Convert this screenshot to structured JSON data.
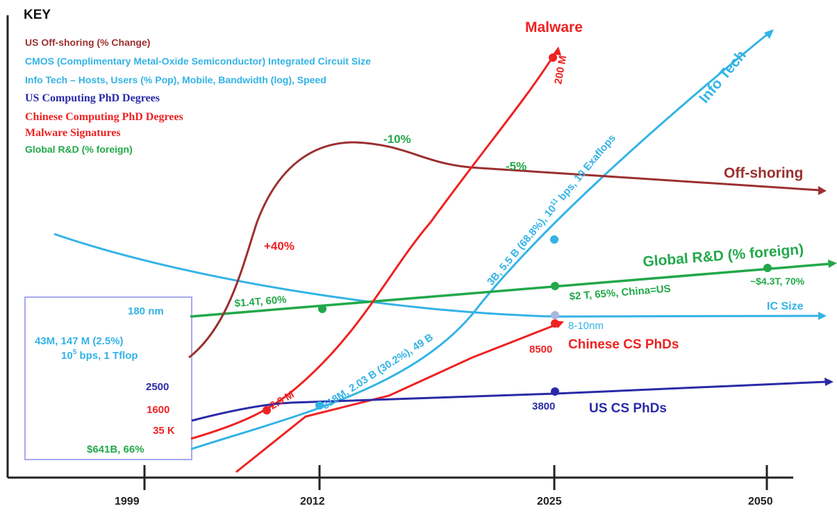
{
  "chart_data": {
    "type": "line",
    "x_ticks": [
      "1999",
      "2012",
      "2025",
      "2050"
    ],
    "key": {
      "title": "KEY",
      "entries": [
        {
          "text": "US Off-shoring (% Change)",
          "color": "#9b3030"
        },
        {
          "text": "CMOS (Complimentary Metal-Oxide Semiconductor) Integrated Circuit Size",
          "color": "#33b3e6"
        },
        {
          "text": "Info Tech – Hosts, Users (% Pop), Mobile, Bandwidth (log), Speed",
          "color": "#33b3e6"
        },
        {
          "text": "US Computing PhD Degrees",
          "color": "#2a2aa8"
        },
        {
          "text": "Chinese Computing PhD Degrees",
          "color": "#ee2222"
        },
        {
          "text": "Malware Signatures",
          "color": "#ee2222"
        },
        {
          "text": "Global R&D (% foreign)",
          "color": "#22a84a"
        }
      ]
    },
    "start_values": {
      "ic_size": "180 nm",
      "info_tech": "43M, 147 M (2.5%)",
      "info_tech_speed_base": "10",
      "info_tech_speed_exp": "5",
      "info_tech_speed_rest": " bps, 1 Tflop",
      "us_phd": "2500",
      "chinese_phd": "1600",
      "malware": "35 K",
      "global_rd": "$641B, 66%"
    },
    "series": [
      {
        "name": "Malware",
        "color": "#ee2222",
        "annotations": [
          "2.9 M",
          "200 M"
        ]
      },
      {
        "name": "Info Tech",
        "color": "#33b3e6",
        "annotations": [
          "818M, 2.03 B (30.2%), 49 B"
        ],
        "annotation_2025": {
          "pre": "3B, 5.5 B (68.8%), 10",
          "sup": "11",
          "post": " bps, 10 Exaflops"
        }
      },
      {
        "name": "Off-shoring",
        "color": "#9b3030",
        "annotations": [
          "+40%",
          "-10%",
          "-5%"
        ]
      },
      {
        "name": "Global R&D (% foreign)",
        "color": "#22a84a",
        "annotations": [
          "$1.4T, 60%",
          "$2 T, 65%, China=US",
          "~$4.3T, 70%"
        ]
      },
      {
        "name": "IC Size",
        "color": "#33b3e6",
        "annotations": [
          "8-10nm"
        ]
      },
      {
        "name": "Chinese CS PhDs",
        "color": "#ee2222",
        "annotations": [
          "8500"
        ]
      },
      {
        "name": "US CS PhDs",
        "color": "#2a2aa8",
        "annotations": [
          "3800"
        ]
      }
    ]
  }
}
